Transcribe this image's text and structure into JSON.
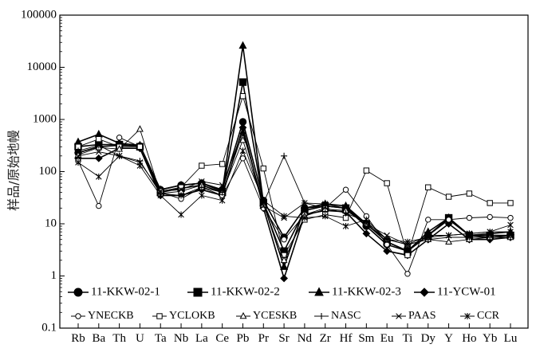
{
  "chart_data": {
    "type": "line",
    "title": "",
    "xlabel": "",
    "ylabel": "样品/原始地幔",
    "y_scale": "log",
    "ylim": [
      0.1,
      100000
    ],
    "yticks": [
      0.1,
      1,
      10,
      100,
      1000,
      10000,
      100000
    ],
    "ytick_labels": [
      "0.1",
      "1",
      "10",
      "100",
      "1000",
      "10000",
      "100000"
    ],
    "categories": [
      "Rb",
      "Ba",
      "Th",
      "U",
      "Ta",
      "Nb",
      "La",
      "Ce",
      "Pb",
      "Pr",
      "Sr",
      "Nd",
      "Zr",
      "Hf",
      "Sm",
      "Eu",
      "Ti",
      "Dy",
      "Y",
      "Ho",
      "Yb",
      "Lu"
    ],
    "legend_position": "bottom-inside",
    "series": [
      {
        "name": "11-KKW-02-1",
        "marker": "filled-circle",
        "values": [
          230,
          300,
          320,
          310,
          45,
          55,
          60,
          45,
          900,
          28,
          5.5,
          20,
          22,
          20,
          9,
          4,
          3,
          6,
          12,
          6,
          5.5,
          6
        ]
      },
      {
        "name": "11-KKW-02-2",
        "marker": "filled-square",
        "values": [
          300,
          330,
          330,
          300,
          40,
          48,
          55,
          40,
          5200,
          25,
          3,
          18,
          22,
          20,
          10,
          4.5,
          3,
          6,
          13,
          6,
          6,
          6
        ]
      },
      {
        "name": "11-KKW-02-3",
        "marker": "filled-triangle",
        "values": [
          370,
          520,
          350,
          320,
          45,
          55,
          60,
          42,
          26000,
          25,
          1.5,
          20,
          24,
          22,
          10,
          4.5,
          3,
          7,
          13,
          6,
          6.5,
          7
        ]
      },
      {
        "name": "11-YCW-01",
        "marker": "filled-diamond",
        "values": [
          180,
          180,
          280,
          280,
          35,
          35,
          45,
          35,
          700,
          20,
          0.9,
          15,
          18,
          17,
          6.5,
          3,
          2.5,
          5,
          10,
          5,
          5,
          5.5
        ]
      },
      {
        "name": "YNECKB",
        "marker": "open-circle",
        "values": [
          160,
          22,
          450,
          300,
          40,
          30,
          50,
          35,
          180,
          20,
          5,
          15,
          20,
          45,
          14,
          4,
          1.1,
          12,
          12,
          13,
          13.5,
          13
        ]
      },
      {
        "name": "YCLOKB",
        "marker": "open-square",
        "values": [
          300,
          420,
          300,
          300,
          42,
          50,
          130,
          140,
          2800,
          115,
          2.5,
          12,
          15,
          13,
          105,
          60,
          2.5,
          50,
          33,
          38,
          25,
          25
        ]
      },
      {
        "name": "YCESKB",
        "marker": "open-triangle",
        "values": [
          210,
          290,
          270,
          650,
          38,
          42,
          55,
          40,
          400,
          23,
          2,
          14,
          19,
          18,
          10,
          5,
          4,
          5,
          4.5,
          5,
          5.5,
          5.5
        ]
      },
      {
        "name": "NASC",
        "marker": "plus",
        "values": [
          250,
          320,
          200,
          160,
          38,
          35,
          50,
          40,
          550,
          25,
          200,
          25,
          20,
          16,
          11,
          5,
          4,
          5,
          5.5,
          5.5,
          5.5,
          5.5
        ]
      },
      {
        "name": "PAAS",
        "marker": "cross",
        "values": [
          200,
          240,
          200,
          150,
          42,
          45,
          65,
          55,
          600,
          22,
          13,
          25,
          24,
          20,
          10,
          6,
          4,
          6,
          6,
          6.5,
          7,
          7
        ]
      },
      {
        "name": "CCR",
        "marker": "asterisk",
        "values": [
          150,
          80,
          200,
          130,
          35,
          15,
          35,
          28,
          250,
          28,
          14,
          13,
          14,
          9,
          12,
          5,
          4.5,
          5.5,
          6,
          6.5,
          7,
          9.5
        ]
      }
    ]
  }
}
